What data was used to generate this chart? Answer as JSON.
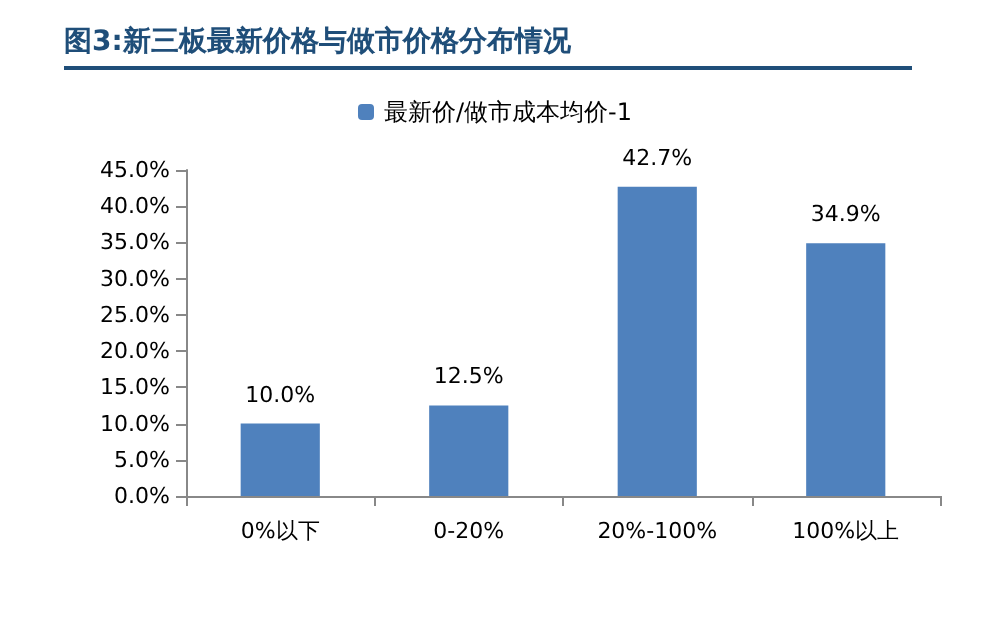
{
  "chart_data": {
    "type": "bar",
    "title": "图3:新三板最新价格与做市价格分布情况",
    "categories": [
      "0%以下",
      "0-20%",
      "20%-100%",
      "100%以上"
    ],
    "series": [
      {
        "name": "最新价/做市成本均价-1",
        "color": "#4f81bd",
        "values": [
          10.0,
          12.5,
          42.7,
          34.9
        ],
        "value_labels": [
          "10.0%",
          "12.5%",
          "42.7%",
          "34.9%"
        ]
      }
    ],
    "ylim": [
      0,
      45
    ],
    "yticks": [
      {
        "value": 0,
        "label": "0.0%"
      },
      {
        "value": 5,
        "label": "5.0%"
      },
      {
        "value": 10,
        "label": "10.0%"
      },
      {
        "value": 15,
        "label": "15.0%"
      },
      {
        "value": 20,
        "label": "20.0%"
      },
      {
        "value": 25,
        "label": "25.0%"
      },
      {
        "value": 30,
        "label": "30.0%"
      },
      {
        "value": 35,
        "label": "35.0%"
      },
      {
        "value": 40,
        "label": "40.0%"
      },
      {
        "value": 45,
        "label": "45.0%"
      }
    ],
    "grid": false,
    "legend": "top"
  }
}
